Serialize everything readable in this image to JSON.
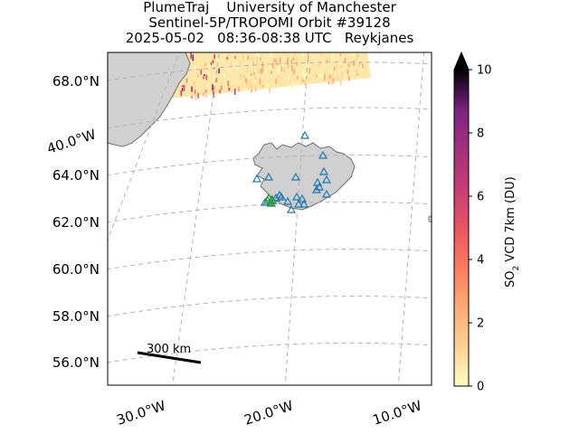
{
  "title": {
    "line1": "PlumeTraj    University of Manchester",
    "line2": "Sentinel-5P/TROPOMI Orbit #39128",
    "line3": "2025-05-02   08:36-08:38 UTC   Reykjanes"
  },
  "lat_labels": [
    "68.0°N",
    "64.0°N",
    "62.0°N",
    "60.0°N",
    "58.0°N",
    "56.0°N"
  ],
  "lon_labels": [
    "30.0°W",
    "20.0°W",
    "10.0°W"
  ],
  "side_lon_label": "40.0°W",
  "scale_bar_label": "300 km",
  "colorbar": {
    "label_main": "SO",
    "label_sub": "2",
    "label_rest": " VCD 7km (DU)",
    "ticks": [
      "0",
      "2",
      "4",
      "6",
      "8",
      "10"
    ],
    "min": 0,
    "max": 10,
    "extend": "max",
    "colormap": "magma_r"
  },
  "colors": {
    "land": "#d0d0d0",
    "coast": "#6e6e6e",
    "grid": "#b4b4b4",
    "volcano_marker": "#1f77b4",
    "active_volcano": "#2ca02c"
  },
  "markers": {
    "volcano_count": 24,
    "active_volcano_count": 3
  }
}
